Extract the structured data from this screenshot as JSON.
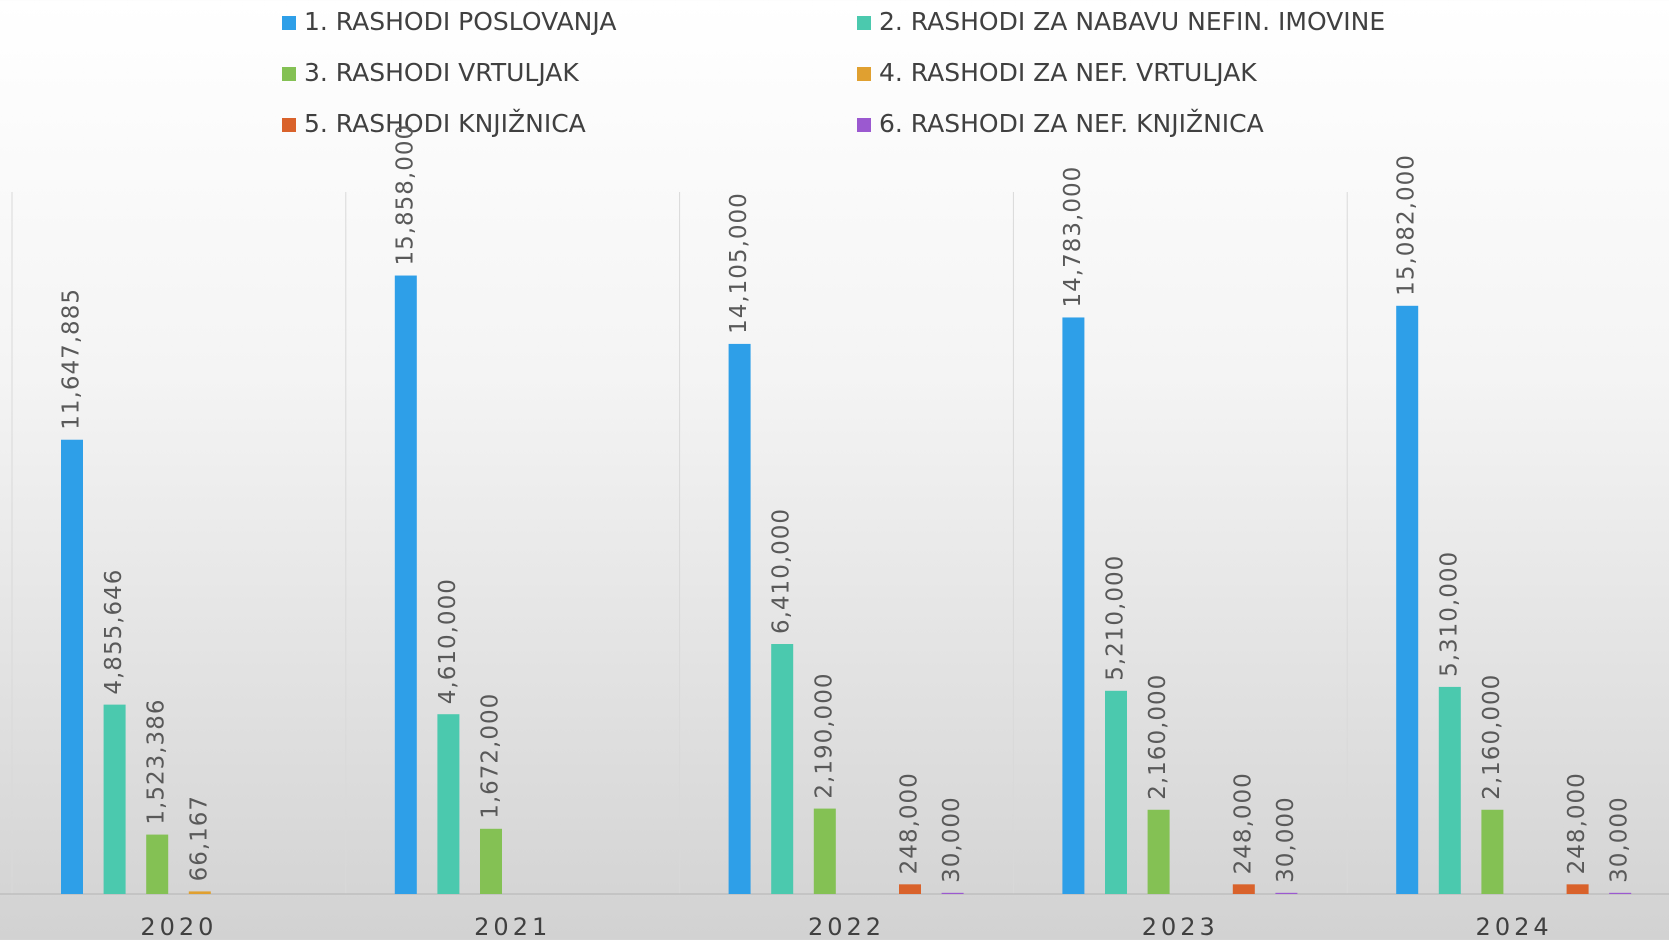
{
  "chart_data": {
    "type": "bar",
    "categories": [
      "2020",
      "2021",
      "2022",
      "2023",
      "2024"
    ],
    "ylim": [
      0,
      18000000
    ],
    "grid": true,
    "series": [
      {
        "name": "1. RASHODI POSLOVANJA",
        "color": "#2e9fe8",
        "values": [
          11647885,
          15858000,
          14105000,
          14783000,
          15082000
        ],
        "value_labels": [
          "11,647,885",
          "15,858,000",
          "14,105,000",
          "14,783,000",
          "15,082,000"
        ]
      },
      {
        "name": "2. RASHODI ZA NABAVU NEFIN. IMOVINE",
        "color": "#4bc9ae",
        "values": [
          4855646,
          4610000,
          6410000,
          5210000,
          5310000
        ],
        "value_labels": [
          "4,855,646",
          "4,610,000",
          "6,410,000",
          "5,210,000",
          "5,310,000"
        ]
      },
      {
        "name": "3. RASHODI VRTULJAK",
        "color": "#84c154",
        "values": [
          1523386,
          1672000,
          2190000,
          2160000,
          2160000
        ],
        "value_labels": [
          "1,523,386",
          "1,672,000",
          "2,190,000",
          "2,160,000",
          "2,160,000"
        ]
      },
      {
        "name": "4. RASHODI ZA NEF. VRTULJAK",
        "color": "#e0a030",
        "values": [
          66167,
          null,
          null,
          null,
          null
        ],
        "value_labels": [
          "66,167",
          null,
          null,
          null,
          null
        ]
      },
      {
        "name": "5. RASHODI KNJIŽNICA",
        "color": "#d9622b",
        "values": [
          null,
          null,
          248000,
          248000,
          248000
        ],
        "value_labels": [
          null,
          null,
          "248,000",
          "248,000",
          "248,000"
        ]
      },
      {
        "name": "6. RASHODI ZA NEF. KNJIŽNICA",
        "color": "#9b59d0",
        "values": [
          null,
          null,
          30000,
          30000,
          30000
        ],
        "value_labels": [
          null,
          null,
          "30,000",
          "30,000",
          "30,000"
        ]
      }
    ]
  }
}
